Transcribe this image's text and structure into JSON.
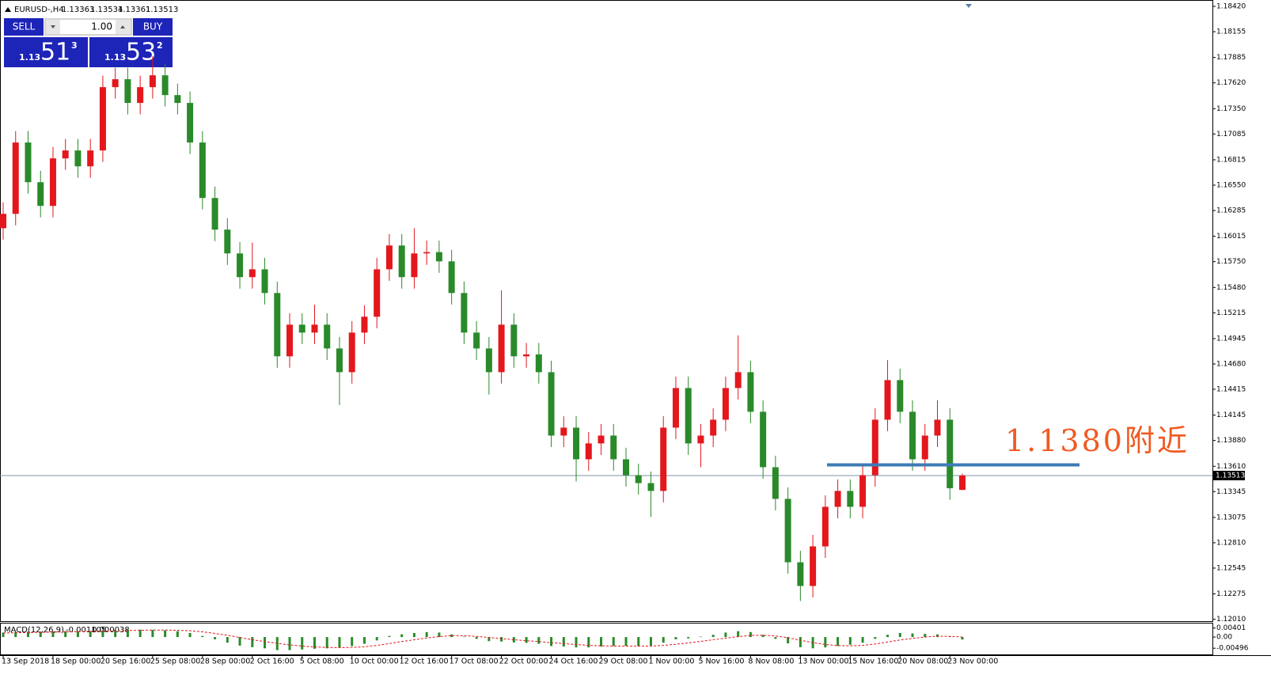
{
  "chart_data": [
    {
      "type": "candlestick",
      "title": "EURUSD-,H4",
      "up_color": "#e3171c",
      "down_color": "#2a8a2a",
      "price_line_color": "#7f93a8",
      "ylim": [
        1.1199,
        1.1847
      ],
      "yticks": [
        {
          "value": 1.1842,
          "label": "1.18420"
        },
        1.18155,
        1.17885,
        {
          "value": 1.1762,
          "label": "1.17620"
        },
        {
          "value": 1.1735,
          "label": "1.17350"
        },
        1.17085,
        1.16815,
        {
          "value": 1.1655,
          "label": "1.16550"
        },
        1.16285,
        1.16015,
        {
          "value": 1.1575,
          "label": "1.15750"
        },
        {
          "value": 1.1548,
          "label": "1.15480"
        },
        1.15215,
        1.14945,
        {
          "value": 1.1468,
          "label": "1.14680"
        },
        1.14415,
        1.14145,
        {
          "value": 1.1388,
          "label": "1.13880"
        },
        {
          "value": 1.1361,
          "label": "1.13610"
        },
        1.13345,
        1.13075,
        {
          "value": 1.1281,
          "label": "1.12810"
        },
        1.12545,
        1.12275,
        {
          "value": 1.1201,
          "label": "1.12010"
        }
      ],
      "categories": [
        "13 Sep 2018",
        null,
        null,
        null,
        "18 Sep 00:00",
        null,
        null,
        null,
        "20 Sep 16:00",
        null,
        null,
        null,
        "25 Sep 08:00",
        null,
        null,
        null,
        "28 Sep 00:00",
        null,
        null,
        null,
        "2 Oct 16:00",
        null,
        null,
        null,
        "5 Oct 08:00",
        null,
        null,
        null,
        "10 Oct 00:00",
        null,
        null,
        null,
        "12 Oct 16:00",
        null,
        null,
        null,
        "17 Oct 08:00",
        null,
        null,
        null,
        "22 Oct 00:00",
        null,
        null,
        null,
        "24 Oct 16:00",
        null,
        null,
        null,
        "29 Oct 08:00",
        null,
        null,
        null,
        "1 Nov 00:00",
        null,
        null,
        null,
        "5 Nov 16:00",
        null,
        null,
        null,
        "8 Nov 08:00",
        null,
        null,
        null,
        "13 Nov 00:00",
        null,
        null,
        null,
        "15 Nov 16:00",
        null,
        null,
        null,
        "20 Nov 08:00",
        null,
        null,
        null,
        "23 Nov 00:00",
        null
      ],
      "candles": [
        [
          1.161,
          1.1637,
          1.1598,
          1.1625
        ],
        [
          1.1625,
          1.17116,
          1.1613,
          1.16996
        ],
        [
          1.16996,
          1.17116,
          1.16461,
          1.16581
        ],
        [
          1.16581,
          1.16701,
          1.16213,
          1.16333
        ],
        [
          1.16333,
          1.1695,
          1.16213,
          1.1683
        ],
        [
          1.1683,
          1.17033,
          1.1671,
          1.16913
        ],
        [
          1.16913,
          1.17033,
          1.16627,
          1.16747
        ],
        [
          1.16747,
          1.17033,
          1.16627,
          1.16913
        ],
        [
          1.16913,
          1.17695,
          1.16793,
          1.17575
        ],
        [
          1.17575,
          1.17778,
          1.17455,
          1.17658
        ],
        [
          1.17658,
          1.17778,
          1.1729,
          1.1741
        ],
        [
          1.1741,
          1.17695,
          1.1729,
          1.17575
        ],
        [
          1.17575,
          1.179,
          1.17455,
          1.17699
        ],
        [
          1.17699,
          1.17819,
          1.17372,
          1.17492
        ],
        [
          1.17492,
          1.17612,
          1.1729,
          1.1741
        ],
        [
          1.1741,
          1.1753,
          1.16876,
          1.16996
        ],
        [
          1.16996,
          1.17116,
          1.16296,
          1.16416
        ],
        [
          1.16416,
          1.16536,
          1.15965,
          1.16085
        ],
        [
          1.16085,
          1.16205,
          1.15716,
          1.15836
        ],
        [
          1.15836,
          1.15956,
          1.15468,
          1.15588
        ],
        [
          1.15588,
          1.1595,
          1.15468,
          1.1567
        ],
        [
          1.1567,
          1.1579,
          1.15302,
          1.15422
        ],
        [
          1.15422,
          1.15542,
          1.1464,
          1.1476
        ],
        [
          1.1476,
          1.15211,
          1.1464,
          1.15091
        ],
        [
          1.15091,
          1.15211,
          1.14888,
          1.15008
        ],
        [
          1.15008,
          1.153,
          1.14888,
          1.15091
        ],
        [
          1.15091,
          1.15211,
          1.14722,
          1.14842
        ],
        [
          1.14842,
          1.14962,
          1.1425,
          1.14594
        ],
        [
          1.14594,
          1.15128,
          1.14474,
          1.15008
        ],
        [
          1.15008,
          1.15294,
          1.14888,
          1.15174
        ],
        [
          1.15174,
          1.1579,
          1.15054,
          1.1567
        ],
        [
          1.1567,
          1.16039,
          1.1555,
          1.15919
        ],
        [
          1.15919,
          1.16039,
          1.15468,
          1.15588
        ],
        [
          1.15588,
          1.161,
          1.15468,
          1.15836
        ],
        [
          1.15836,
          1.1597,
          1.15716,
          1.1585
        ],
        [
          1.1585,
          1.1597,
          1.15633,
          1.15753
        ],
        [
          1.15753,
          1.15873,
          1.15302,
          1.15422
        ],
        [
          1.15422,
          1.15542,
          1.14888,
          1.15008
        ],
        [
          1.15008,
          1.15128,
          1.14722,
          1.14842
        ],
        [
          1.14842,
          1.14962,
          1.1436,
          1.14594
        ],
        [
          1.14594,
          1.1545,
          1.14474,
          1.15091
        ],
        [
          1.15091,
          1.15211,
          1.1464,
          1.1476
        ],
        [
          1.1476,
          1.149,
          1.1464,
          1.1478
        ],
        [
          1.1478,
          1.149,
          1.14474,
          1.14594
        ],
        [
          1.14594,
          1.14714,
          1.13811,
          1.13931
        ],
        [
          1.13931,
          1.14134,
          1.13811,
          1.14014
        ],
        [
          1.14014,
          1.14134,
          1.1345,
          1.13683
        ],
        [
          1.13683,
          1.13969,
          1.13563,
          1.13849
        ],
        [
          1.13849,
          1.14051,
          1.13729,
          1.13931
        ],
        [
          1.13931,
          1.14051,
          1.13563,
          1.13683
        ],
        [
          1.13683,
          1.13803,
          1.13397,
          1.13517
        ],
        [
          1.13517,
          1.13637,
          1.13314,
          1.13434
        ],
        [
          1.13434,
          1.13554,
          1.1308,
          1.13352
        ],
        [
          1.13352,
          1.14134,
          1.13232,
          1.14014
        ],
        [
          1.14014,
          1.14548,
          1.13894,
          1.14428
        ],
        [
          1.14428,
          1.14548,
          1.13729,
          1.13849
        ],
        [
          1.13849,
          1.14051,
          1.136,
          1.13931
        ],
        [
          1.13931,
          1.14217,
          1.13811,
          1.14097
        ],
        [
          1.14097,
          1.14548,
          1.13977,
          1.14428
        ],
        [
          1.14428,
          1.1498,
          1.14308,
          1.14594
        ],
        [
          1.14594,
          1.14714,
          1.1406,
          1.1418
        ],
        [
          1.1418,
          1.143,
          1.1348,
          1.136
        ],
        [
          1.136,
          1.1372,
          1.13149,
          1.13269
        ],
        [
          1.13269,
          1.13389,
          1.12486,
          1.12606
        ],
        [
          1.12606,
          1.12726,
          1.122,
          1.12358
        ],
        [
          1.12358,
          1.12892,
          1.12238,
          1.12772
        ],
        [
          1.12772,
          1.13306,
          1.12652,
          1.13186
        ],
        [
          1.13186,
          1.13472,
          1.13066,
          1.13352
        ],
        [
          1.13352,
          1.13472,
          1.13066,
          1.13186
        ],
        [
          1.13186,
          1.13637,
          1.13066,
          1.13517
        ],
        [
          1.13517,
          1.14217,
          1.13397,
          1.14097
        ],
        [
          1.14097,
          1.1472,
          1.13977,
          1.14511
        ],
        [
          1.14511,
          1.14631,
          1.1406,
          1.1418
        ],
        [
          1.1418,
          1.143,
          1.13563,
          1.13683
        ],
        [
          1.13683,
          1.14051,
          1.13563,
          1.13931
        ],
        [
          1.13931,
          1.143,
          1.13811,
          1.14097
        ],
        [
          1.14097,
          1.14217,
          1.1326,
          1.1338
        ],
        [
          1.13363,
          1.13534,
          1.13361,
          1.13513
        ]
      ],
      "annotation": {
        "text": "1.1380附近",
        "level": 1.13625,
        "line_color": "#3d7bb5",
        "text_color": "#f05a22"
      }
    },
    {
      "type": "macd",
      "title": "MACD(12,26,9)",
      "histogram_color": "#2a8a2a",
      "signal_color": "#e3171c",
      "ylim": [
        -0.0077,
        0.006
      ],
      "yticks": [
        {
          "value": 0.00401,
          "label": "0.00401"
        },
        {
          "value": 0,
          "label": "0.00"
        },
        {
          "value": -0.00496,
          "label": "-0.00496"
        }
      ],
      "histogram": [
        0.002,
        0.0022,
        0.0024,
        0.0024,
        0.0025,
        0.0026,
        0.0026,
        0.0027,
        0.003,
        0.0032,
        0.0033,
        0.0033,
        0.0032,
        0.003,
        0.0026,
        0.0018,
        0.0005,
        -0.001,
        -0.0025,
        -0.0038,
        -0.0045,
        -0.005,
        -0.0058,
        -0.0058,
        -0.0055,
        -0.0052,
        -0.005,
        -0.0048,
        -0.004,
        -0.003,
        -0.0015,
        0.0005,
        0.0012,
        0.0018,
        0.0022,
        0.002,
        0.0012,
        0.0002,
        -0.0008,
        -0.0018,
        -0.002,
        -0.0024,
        -0.0026,
        -0.003,
        -0.004,
        -0.0042,
        -0.0046,
        -0.0046,
        -0.0042,
        -0.004,
        -0.004,
        -0.004,
        -0.0038,
        -0.0025,
        -0.001,
        -0.0006,
        0.0002,
        0.001,
        0.002,
        0.0026,
        0.0022,
        0.001,
        -0.0008,
        -0.0028,
        -0.0045,
        -0.005,
        -0.0046,
        -0.004,
        -0.0034,
        -0.0025,
        -0.0008,
        0.001,
        0.0018,
        0.0016,
        0.0014,
        0.0012,
        0.0002,
        -0.001105
      ],
      "signal": [
        0.0018,
        0.0019,
        0.002,
        0.0021,
        0.0022,
        0.0023,
        0.0024,
        0.0025,
        0.0026,
        0.0027,
        0.0029,
        0.003,
        0.0031,
        0.0031,
        0.003,
        0.0028,
        0.0023,
        0.0016,
        0.0008,
        -0.0002,
        -0.0012,
        -0.002,
        -0.0028,
        -0.0035,
        -0.004,
        -0.0044,
        -0.0046,
        -0.0047,
        -0.0046,
        -0.0043,
        -0.0037,
        -0.0029,
        -0.002,
        -0.0012,
        -0.0004,
        0.0002,
        0.0006,
        0.0006,
        0.0003,
        -0.0002,
        -0.0007,
        -0.0012,
        -0.0016,
        -0.002,
        -0.0025,
        -0.0029,
        -0.0033,
        -0.0037,
        -0.0039,
        -0.004,
        -0.004,
        -0.004,
        -0.004,
        -0.0037,
        -0.0032,
        -0.0026,
        -0.0019,
        -0.0012,
        -0.0005,
        0.0002,
        0.0007,
        0.0008,
        0.0005,
        -0.0003,
        -0.0014,
        -0.0025,
        -0.0033,
        -0.0038,
        -0.0039,
        -0.0037,
        -0.0031,
        -0.0022,
        -0.0013,
        -0.0006,
        0,
        0.0004,
        0.0003,
        3.8e-05
      ]
    }
  ],
  "trade_panel": {
    "sell": "SELL",
    "buy": "BUY",
    "lot": "1.00",
    "sell_price": {
      "prefix": "1.13",
      "main": "51",
      "suffix": "3"
    },
    "buy_price": {
      "prefix": "1.13",
      "main": "53",
      "suffix": "2"
    }
  }
}
